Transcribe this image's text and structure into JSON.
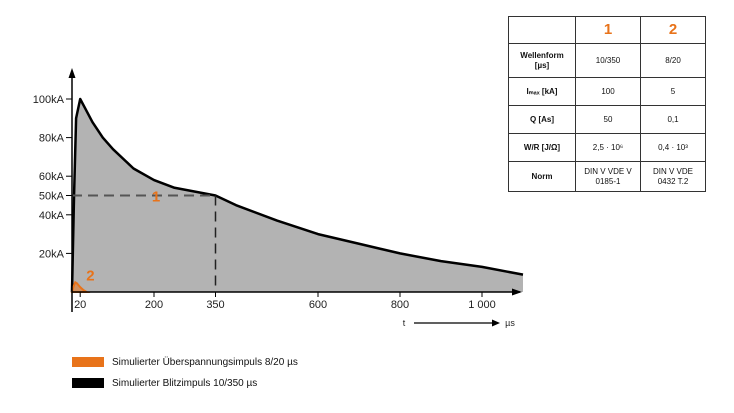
{
  "chart_data": {
    "type": "area",
    "title": "",
    "xlabel": "t",
    "ylabel": "",
    "x_unit": "µs",
    "x_ticks": [
      "20",
      "200",
      "350",
      "600",
      "800",
      "1 000"
    ],
    "x_tick_values": [
      20,
      200,
      350,
      600,
      800,
      1000
    ],
    "y_ticks": [
      "20kA",
      "40kA",
      "50kA",
      "60kA",
      "80kA",
      "100kA"
    ],
    "y_tick_values": [
      20,
      40,
      50,
      60,
      80,
      100
    ],
    "xlim": [
      0,
      1130
    ],
    "ylim": [
      0,
      120
    ],
    "series": [
      {
        "name": "Simulierter Blitzimpuls 10/350 µs",
        "color": "#000000",
        "fill": "#b3b3b3",
        "x": [
          0,
          5,
          10,
          20,
          30,
          50,
          75,
          100,
          150,
          200,
          250,
          300,
          350,
          400,
          500,
          600,
          700,
          800,
          900,
          1000,
          1100
        ],
        "y": [
          0,
          50,
          90,
          100,
          96,
          88,
          80,
          74,
          64,
          58,
          54,
          52,
          50,
          45,
          37,
          30,
          25,
          20,
          16,
          13,
          9
        ]
      },
      {
        "name": "Simulierter Überspannungsimpuls 8/20 µs",
        "color": "#e8731a",
        "x": [
          0,
          4,
          8,
          12,
          16,
          20,
          28,
          36
        ],
        "y": [
          0,
          3,
          5,
          4.5,
          3.5,
          2.5,
          1,
          0
        ]
      }
    ],
    "annotations": [
      {
        "text": "1",
        "x": 200,
        "y": 50
      },
      {
        "text": "2",
        "x": 45,
        "y": 8
      }
    ],
    "reference_lines": {
      "y": 50,
      "x": 350
    }
  },
  "table": {
    "headers": [
      "",
      "1",
      "2"
    ],
    "rows": [
      {
        "label_lines": [
          "Wellenform",
          "[µs]"
        ],
        "v1": [
          "10/350"
        ],
        "v2": [
          "8/20"
        ]
      },
      {
        "label_lines": [
          "Iₘₐₓ [kA]"
        ],
        "v1": [
          "100"
        ],
        "v2": [
          "5"
        ]
      },
      {
        "label_lines": [
          "Q [As]"
        ],
        "v1": [
          "50"
        ],
        "v2": [
          "0,1"
        ]
      },
      {
        "label_lines": [
          "W/R [J/Ω]"
        ],
        "v1": [
          "2,5 · 10⁶"
        ],
        "v2": [
          "0,4 · 10³"
        ]
      },
      {
        "label_lines": [
          "Norm"
        ],
        "v1": [
          "DIN V VDE V",
          "0185-1"
        ],
        "v2": [
          "DIN V VDE",
          "0432 T.2"
        ]
      }
    ]
  },
  "legend": [
    {
      "label": "Simulierter Überspannungsimpuls 8/20 µs",
      "color": "#e8731a"
    },
    {
      "label": "Simulierter Blitzimpuls 10/350 µs",
      "color": "#000000"
    }
  ]
}
